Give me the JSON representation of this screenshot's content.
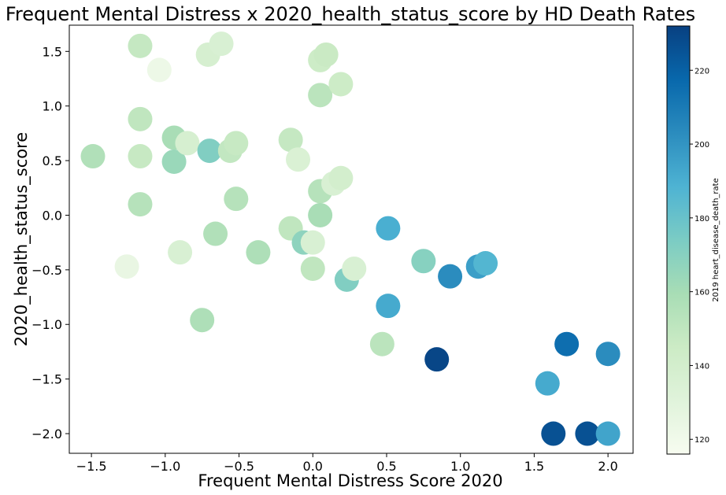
{
  "chart_data": {
    "type": "scatter",
    "title": "Frequent Mental Distress x 2020_health_status_score by HD Death Rates",
    "xlabel": "Frequent Mental Distress Score 2020",
    "ylabel": "2020_health_status_score",
    "xlim": [
      -1.65,
      2.17
    ],
    "ylim": [
      -2.18,
      1.74
    ],
    "xticks": [
      -1.5,
      -1.0,
      -0.5,
      0.0,
      0.5,
      1.0,
      1.5,
      2.0
    ],
    "xtick_labels": [
      "−1.5",
      "−1.0",
      "−0.5",
      "0.0",
      "0.5",
      "1.0",
      "1.5",
      "2.0"
    ],
    "yticks": [
      -2.0,
      -1.5,
      -1.0,
      -0.5,
      0.0,
      0.5,
      1.0,
      1.5
    ],
    "ytick_labels": [
      "−2.0",
      "−1.5",
      "−1.0",
      "−0.5",
      "0.0",
      "0.5",
      "1.0",
      "1.5"
    ],
    "grid": false,
    "colorbar": {
      "label": "2019 heart_disease_death_rate",
      "range": [
        116,
        232
      ],
      "ticks": [
        120,
        140,
        160,
        180,
        200,
        220
      ],
      "tick_labels": [
        "120",
        "140",
        "160",
        "180",
        "200",
        "220"
      ],
      "colormap": "GnBu",
      "stops": [
        "#f7fcf0",
        "#e0f3db",
        "#ccebc5",
        "#a8ddb5",
        "#7bccc4",
        "#4eb3d3",
        "#2b8cbe",
        "#0868ac",
        "#084081"
      ]
    },
    "points": [
      {
        "x": -1.49,
        "y": 0.54,
        "c": 156
      },
      {
        "x": -1.17,
        "y": 1.55,
        "c": 148
      },
      {
        "x": -1.17,
        "y": 0.88,
        "c": 150
      },
      {
        "x": -1.17,
        "y": 0.54,
        "c": 147
      },
      {
        "x": -1.17,
        "y": 0.1,
        "c": 154
      },
      {
        "x": -1.26,
        "y": -0.47,
        "c": 125
      },
      {
        "x": -1.04,
        "y": 1.33,
        "c": 122
      },
      {
        "x": -0.94,
        "y": 0.71,
        "c": 159
      },
      {
        "x": -0.94,
        "y": 0.49,
        "c": 164
      },
      {
        "x": -0.9,
        "y": -0.34,
        "c": 136
      },
      {
        "x": -0.85,
        "y": 0.66,
        "c": 138
      },
      {
        "x": -0.71,
        "y": 1.47,
        "c": 138
      },
      {
        "x": -0.7,
        "y": 0.59,
        "c": 172
      },
      {
        "x": -0.75,
        "y": -0.96,
        "c": 157
      },
      {
        "x": -0.66,
        "y": -0.17,
        "c": 156
      },
      {
        "x": -0.62,
        "y": 1.57,
        "c": 136
      },
      {
        "x": -0.56,
        "y": 0.59,
        "c": 149
      },
      {
        "x": -0.52,
        "y": 0.66,
        "c": 147
      },
      {
        "x": -0.52,
        "y": 0.15,
        "c": 154
      },
      {
        "x": -0.37,
        "y": -0.34,
        "c": 157
      },
      {
        "x": -0.15,
        "y": 0.69,
        "c": 148
      },
      {
        "x": -0.15,
        "y": -0.12,
        "c": 150
      },
      {
        "x": -0.1,
        "y": 0.51,
        "c": 135
      },
      {
        "x": -0.06,
        "y": -0.25,
        "c": 168
      },
      {
        "x": 0.0,
        "y": -0.25,
        "c": 136
      },
      {
        "x": 0.0,
        "y": -0.49,
        "c": 150
      },
      {
        "x": 0.05,
        "y": 1.42,
        "c": 144
      },
      {
        "x": 0.05,
        "y": 1.1,
        "c": 152
      },
      {
        "x": 0.05,
        "y": 0.22,
        "c": 154
      },
      {
        "x": 0.05,
        "y": 0.0,
        "c": 159
      },
      {
        "x": 0.09,
        "y": 1.47,
        "c": 146
      },
      {
        "x": 0.14,
        "y": 0.29,
        "c": 136
      },
      {
        "x": 0.19,
        "y": 1.2,
        "c": 144
      },
      {
        "x": 0.19,
        "y": 0.34,
        "c": 140
      },
      {
        "x": 0.23,
        "y": -0.59,
        "c": 172
      },
      {
        "x": 0.28,
        "y": -0.49,
        "c": 136
      },
      {
        "x": 0.47,
        "y": -1.18,
        "c": 152
      },
      {
        "x": 0.51,
        "y": -0.12,
        "c": 190
      },
      {
        "x": 0.51,
        "y": -0.83,
        "c": 192
      },
      {
        "x": 0.75,
        "y": -0.42,
        "c": 170
      },
      {
        "x": 0.84,
        "y": -1.32,
        "c": 230
      },
      {
        "x": 0.93,
        "y": -0.56,
        "c": 203
      },
      {
        "x": 1.12,
        "y": -0.47,
        "c": 196
      },
      {
        "x": 1.17,
        "y": -0.44,
        "c": 187
      },
      {
        "x": 1.59,
        "y": -1.54,
        "c": 192
      },
      {
        "x": 1.63,
        "y": -2.0,
        "c": 226
      },
      {
        "x": 1.72,
        "y": -1.18,
        "c": 215
      },
      {
        "x": 1.86,
        "y": -2.0,
        "c": 226
      },
      {
        "x": 2.0,
        "y": -1.27,
        "c": 203
      },
      {
        "x": 2.0,
        "y": -2.0,
        "c": 194
      }
    ]
  }
}
